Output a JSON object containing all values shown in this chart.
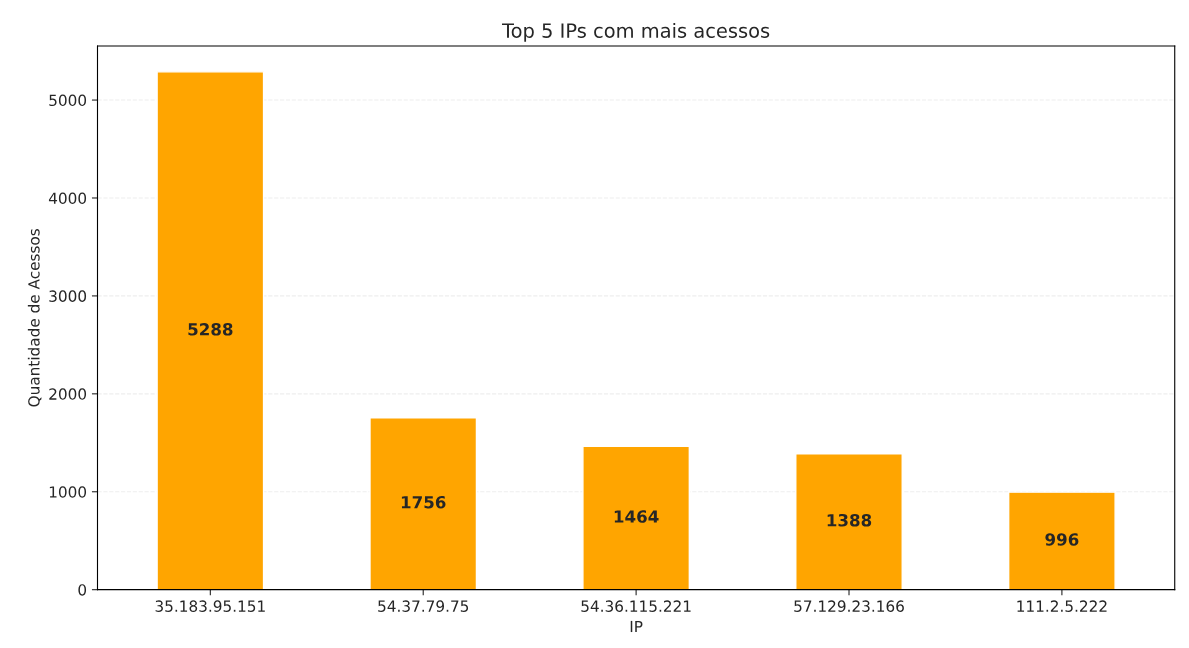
{
  "chart_data": {
    "type": "bar",
    "title": "Top 5 IPs com mais acessos",
    "xlabel": "IP",
    "ylabel": "Quantidade de Acessos",
    "categories": [
      "35.183.95.151",
      "54.37.79.75",
      "54.36.115.221",
      "57.129.23.166",
      "111.2.5.222"
    ],
    "values": [
      5288,
      1756,
      1464,
      1388,
      996
    ],
    "color": "#ffa500",
    "ylim": [
      0,
      5552
    ],
    "yticks": [
      0,
      1000,
      2000,
      3000,
      4000,
      5000
    ],
    "grid": "y",
    "data_labels": true
  }
}
